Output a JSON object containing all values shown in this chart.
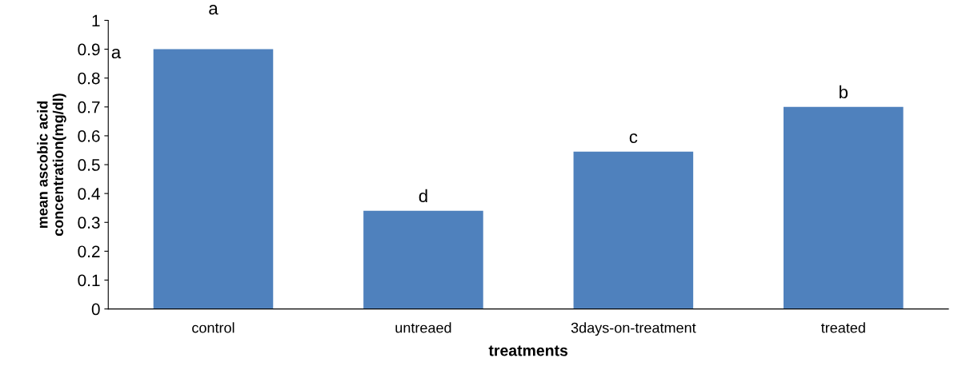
{
  "chart_data": {
    "type": "bar",
    "xlabel": "treatments",
    "ylabel": "mean ascobic acid\nconcentration(mg/dl)",
    "categories": [
      "control",
      "untreaed",
      "3days-on-treatment",
      "treated"
    ],
    "values": [
      0.9,
      0.34,
      0.545,
      0.7
    ],
    "color": "#4f81bd",
    "ylim": [
      0,
      1
    ],
    "yticks": [
      0,
      0.1,
      0.2,
      0.3,
      0.4,
      0.5,
      0.6,
      0.7,
      0.8,
      0.9,
      1
    ],
    "grid": false,
    "annotations": [
      "a",
      "a",
      "d",
      "c",
      "b"
    ]
  }
}
